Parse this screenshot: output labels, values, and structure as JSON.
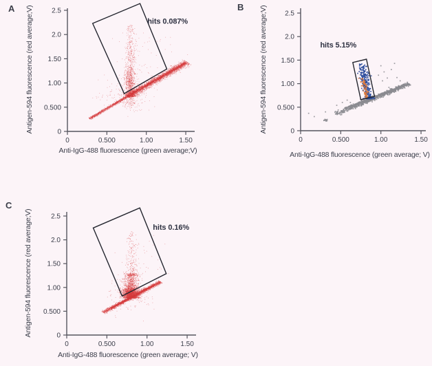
{
  "figure": {
    "background": "#fcf4f8",
    "axis_color": "#55555e",
    "text_color": "#3c3f4b",
    "gate_color": "#24262f",
    "annotation_color": "#2f3242"
  },
  "chart_data": [
    {
      "type": "scatter",
      "panel_label": "A",
      "xlabel": "Anti-IgG-488 fluorescence (green average;V)",
      "ylabel": "Antigen-594 fluorescence (red average;V)",
      "xlim": [
        0,
        1.5
      ],
      "ylim": [
        0,
        2.5
      ],
      "xticks": [
        [
          "0",
          0
        ],
        [
          "0.500",
          0.5
        ],
        [
          "1.00",
          1.0
        ],
        [
          "1.50",
          1.5
        ]
      ],
      "yticks": [
        [
          "0",
          0
        ],
        [
          "0.500",
          0.5
        ],
        [
          "1.00",
          1.0
        ],
        [
          "1.50",
          1.5
        ],
        [
          "2.0",
          2.0
        ],
        [
          "2.5",
          2.5
        ]
      ],
      "grid": false,
      "annotation": {
        "text": "hits 0.087%",
        "x": 1.27,
        "y": 2.28
      },
      "gate": [
        [
          0.32,
          2.23
        ],
        [
          0.92,
          2.64
        ],
        [
          1.26,
          1.29
        ],
        [
          0.72,
          0.78
        ]
      ],
      "series": [
        {
          "name": "red-events",
          "color": "#d63a3c",
          "size": 0.8,
          "alpha": 0.5,
          "clusters": [
            {
              "kind": "band",
              "from": [
                0.28,
                0.26
              ],
              "to": [
                0.79,
                0.75
              ],
              "sigma": 0.012,
              "count": 1100
            },
            {
              "kind": "band",
              "from": [
                0.76,
                0.72
              ],
              "to": [
                1.52,
                1.43
              ],
              "sigma": 0.03,
              "count": 2200
            },
            {
              "kind": "band",
              "from": [
                0.8,
                0.76
              ],
              "to": [
                1.49,
                1.41
              ],
              "sigma": 0.012,
              "count": 1500
            },
            {
              "kind": "plume",
              "x": 0.8,
              "sx": 0.03,
              "y0": 0.72,
              "y1": 2.2,
              "decay": 2.6,
              "count": 700
            },
            {
              "kind": "blob",
              "cx": 0.79,
              "cy": 1.05,
              "sx": 0.027,
              "sy": 0.18,
              "count": 320
            },
            {
              "kind": "plume",
              "x": 0.81,
              "sx": 0.07,
              "y0": 0.75,
              "y1": 1.95,
              "decay": 3.2,
              "count": 230
            },
            {
              "kind": "blob",
              "cx": 0.8,
              "cy": 0.6,
              "sx": 0.045,
              "sy": 0.07,
              "count": 90
            },
            {
              "kind": "blob",
              "cx": 0.72,
              "cy": 0.72,
              "sx": 0.17,
              "sy": 0.15,
              "count": 120
            },
            {
              "kind": "blob",
              "cx": 1.05,
              "cy": 1.55,
              "sx": 0.22,
              "sy": 0.28,
              "count": 40
            }
          ]
        }
      ]
    },
    {
      "type": "scatter",
      "panel_label": "B",
      "xlabel": "Anti-IgG-488 fluorescence (green average; V)",
      "ylabel": "Antigen-594 fluorescence (red average;V)",
      "xlim": [
        0,
        1.5
      ],
      "ylim": [
        0,
        2.5
      ],
      "xticks": [
        [
          "0",
          0
        ],
        [
          "0.500",
          0.5
        ],
        [
          "1.00",
          1.0
        ],
        [
          "1.50",
          1.5
        ]
      ],
      "yticks": [
        [
          "0",
          0
        ],
        [
          "0.500",
          0.5
        ],
        [
          "1.00",
          1.0
        ],
        [
          "1.50",
          1.5
        ],
        [
          "2.0",
          2.0
        ],
        [
          "2.5",
          2.5
        ]
      ],
      "grid": false,
      "annotation": {
        "text": "hits 5.15%",
        "x": 0.47,
        "y": 1.83
      },
      "gate": [
        [
          0.65,
          1.45
        ],
        [
          0.82,
          1.52
        ],
        [
          0.92,
          0.73
        ],
        [
          0.75,
          0.66
        ]
      ],
      "series": [
        {
          "name": "grey-events",
          "color": "#8b8b90",
          "size": 1.7,
          "alpha": 0.85,
          "clusters": [
            {
              "kind": "band",
              "from": [
                0.42,
                0.34
              ],
              "to": [
                1.35,
                1.0
              ],
              "sigma": 0.02,
              "count": 580,
              "bias": 0.8
            },
            {
              "kind": "band",
              "from": [
                0.55,
                0.47
              ],
              "to": [
                1.3,
                0.97
              ],
              "sigma": 0.009,
              "count": 340
            },
            {
              "kind": "blob",
              "cx": 0.3,
              "cy": 0.23,
              "sx": 0.02,
              "sy": 0.012,
              "count": 14
            },
            {
              "kind": "points",
              "pts": [
                [
                  0.1,
                  0.37
                ],
                [
                  0.17,
                  0.3
                ],
                [
                  0.31,
                  0.4
                ],
                [
                  0.45,
                  0.54
                ],
                [
                  0.52,
                  0.6
                ],
                [
                  0.58,
                  0.65
                ],
                [
                  0.62,
                  0.6
                ],
                [
                  0.97,
                  1.18
                ],
                [
                  1.0,
                  1.38
                ],
                [
                  1.04,
                  1.25
                ],
                [
                  1.08,
                  1.12
                ],
                [
                  1.13,
                  1.3
                ],
                [
                  1.17,
                  1.43
                ],
                [
                  1.2,
                  1.13
                ],
                [
                  1.24,
                  1.06
                ],
                [
                  1.3,
                  0.98
                ],
                [
                  1.33,
                  1.03
                ],
                [
                  0.88,
                  1.05
                ],
                [
                  1.02,
                  1.06
                ],
                [
                  1.1,
                  0.92
                ]
              ]
            }
          ]
        },
        {
          "name": "blue-hit-events",
          "color": "#2c4c9c",
          "size": 1.7,
          "alpha": 0.9,
          "clusters": [
            {
              "kind": "plume",
              "x": 0.85,
              "sx": 0.028,
              "y0": 0.68,
              "y1": 1.42,
              "decay": 1.7,
              "count": 210,
              "tilt": -0.12
            },
            {
              "kind": "blob",
              "cx": 0.8,
              "cy": 1.18,
              "sx": 0.028,
              "sy": 0.09,
              "count": 55
            }
          ]
        },
        {
          "name": "orange-hit-events",
          "color": "#e17a39",
          "size": 1.7,
          "alpha": 0.9,
          "clusters": [
            {
              "kind": "plume",
              "x": 0.82,
              "sx": 0.015,
              "y0": 0.7,
              "y1": 1.12,
              "decay": 1.3,
              "count": 65,
              "tilt": -0.1
            }
          ]
        }
      ]
    },
    {
      "type": "scatter",
      "panel_label": "C",
      "xlabel": "Anti-IgG-488 fluorescence (green average; V)",
      "ylabel": "Antigen-594 fluorescence (red average;V)",
      "xlim": [
        0,
        1.5
      ],
      "ylim": [
        0,
        2.5
      ],
      "xticks": [
        [
          "0",
          0
        ],
        [
          "0.500",
          0.5
        ],
        [
          "1.00",
          1.0
        ],
        [
          "1.50",
          1.5
        ]
      ],
      "yticks": [
        [
          "0",
          0
        ],
        [
          "0.500",
          0.5
        ],
        [
          "1.00",
          1.0
        ],
        [
          "1.50",
          1.5
        ],
        [
          "2.0",
          2.0
        ],
        [
          "2.5",
          2.5
        ]
      ],
      "grid": false,
      "annotation": {
        "text": "hits 0.16%",
        "x": 1.3,
        "y": 2.27
      },
      "gate": [
        [
          0.33,
          2.25
        ],
        [
          0.91,
          2.67
        ],
        [
          1.24,
          1.29
        ],
        [
          0.69,
          0.82
        ]
      ],
      "series": [
        {
          "name": "red-events",
          "color": "#d63a3c",
          "size": 0.8,
          "alpha": 0.55,
          "clusters": [
            {
              "kind": "band",
              "from": [
                0.45,
                0.47
              ],
              "to": [
                1.17,
                1.12
              ],
              "sigma": 0.016,
              "count": 1900,
              "bias": 0.9
            },
            {
              "kind": "band",
              "from": [
                0.55,
                0.56
              ],
              "to": [
                1.1,
                1.06
              ],
              "sigma": 0.008,
              "count": 900
            },
            {
              "kind": "plume",
              "x": 0.8,
              "sx": 0.045,
              "y0": 0.78,
              "y1": 1.3,
              "decay": 2.0,
              "count": 1400
            },
            {
              "kind": "blob",
              "cx": 0.8,
              "cy": 0.88,
              "sx": 0.055,
              "sy": 0.06,
              "count": 1100
            },
            {
              "kind": "plume",
              "x": 0.81,
              "sx": 0.038,
              "y0": 1.25,
              "y1": 2.18,
              "decay": 2.3,
              "count": 260
            },
            {
              "kind": "blob",
              "cx": 0.78,
              "cy": 0.85,
              "sx": 0.13,
              "sy": 0.17,
              "count": 150
            },
            {
              "kind": "blob",
              "cx": 0.95,
              "cy": 1.55,
              "sx": 0.18,
              "sy": 0.28,
              "count": 32
            }
          ]
        }
      ]
    }
  ]
}
